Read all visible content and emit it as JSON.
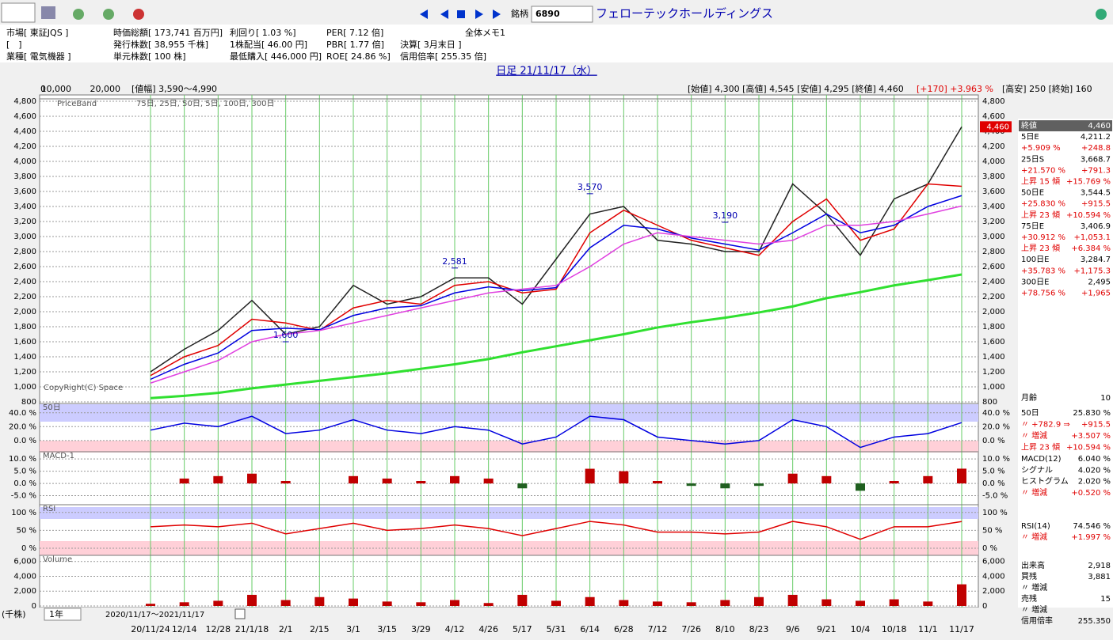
{
  "toolbar": {
    "code_label": "銘柄",
    "code": "6890",
    "company": "フェローテックホールディングス"
  },
  "info": [
    [
      "市場[ 東証JQS ]",
      "[　]",
      "業種[ 電気機器 ]"
    ],
    [
      "時価総額[ 173,741 百万円]",
      "発行株数[ 38,955 千株]",
      "単元株数[ 100 株]"
    ],
    [
      "利回り[ 1.03 %]",
      "1株配当[ 46.00 円]",
      "最低購入[ 446,000 円]"
    ],
    [
      "PER[ 7.12 倍]",
      "PBR[ 1.77 倍]",
      "ROE[ 24.86 %]"
    ],
    [
      "全体メモ1",
      "決算[ 3月末日 ]",
      "信用倍率[ 255.35 倍]"
    ]
  ],
  "chart_header": {
    "title": "日足 21/11/17（水）",
    "band_scale": [
      "0",
      "10,000",
      "20,000"
    ],
    "range": "[値幅] 3,590～4,990",
    "ohlc": "[始値] 4,300 [高値] 4,545 [安値] 4,295 [終値] 4,460",
    "change": "[+170] +3.963 %",
    "high_low": "[高安] 250 [終始] 160"
  },
  "chart_data": [
    {
      "type": "line",
      "title": "PriceBand",
      "subtitle": "75日, 25日, 50日, 5日, 100日, 300日",
      "footnote": "CopyRight(C) Space",
      "categories": [
        "20/11/24",
        "12/14",
        "12/28",
        "21/1/18",
        "2/1",
        "2/15",
        "3/1",
        "3/15",
        "3/29",
        "4/12",
        "4/26",
        "5/17",
        "5/31",
        "6/14",
        "6/28",
        "7/12",
        "7/26",
        "8/10",
        "8/23",
        "9/6",
        "9/21",
        "10/4",
        "10/18",
        "11/1",
        "11/17"
      ],
      "series": [
        {
          "color": "#222222",
          "values": [
            1200,
            1500,
            1750,
            2150,
            1700,
            1800,
            2350,
            2100,
            2200,
            2450,
            2450,
            2100,
            2700,
            3300,
            3400,
            2950,
            2900,
            2800,
            2800,
            3700,
            3300,
            2750,
            3500,
            3700,
            4460
          ]
        },
        {
          "color": "#e00000",
          "values": [
            1150,
            1400,
            1550,
            1900,
            1850,
            1750,
            2050,
            2150,
            2100,
            2350,
            2400,
            2250,
            2300,
            3050,
            3350,
            3150,
            2950,
            2850,
            2750,
            3200,
            3500,
            2950,
            3100,
            3700,
            3669
          ]
        },
        {
          "color": "#0000e0",
          "values": [
            1100,
            1300,
            1450,
            1750,
            1780,
            1760,
            1950,
            2050,
            2080,
            2250,
            2330,
            2280,
            2320,
            2850,
            3150,
            3100,
            2980,
            2900,
            2820,
            3050,
            3300,
            3050,
            3150,
            3400,
            3545
          ]
        },
        {
          "color": "#e040e0",
          "values": [
            1050,
            1200,
            1350,
            1600,
            1700,
            1750,
            1850,
            1950,
            2050,
            2150,
            2250,
            2300,
            2350,
            2600,
            2900,
            3050,
            3000,
            2950,
            2900,
            2950,
            3150,
            3150,
            3200,
            3300,
            3407
          ]
        },
        {
          "color": "#30e030",
          "values": [
            850,
            880,
            920,
            980,
            1030,
            1080,
            1130,
            1180,
            1240,
            1300,
            1370,
            1460,
            1540,
            1620,
            1700,
            1790,
            1860,
            1920,
            1990,
            2070,
            2180,
            2260,
            2350,
            2420,
            2495
          ]
        }
      ],
      "close_tag": "4,460",
      "annotations": [
        {
          "label": "1,600",
          "value": 1600,
          "category": "2/1"
        },
        {
          "label": "2,581",
          "value": 2581,
          "category": "4/12"
        },
        {
          "label": "3,570",
          "value": 3570,
          "category": "6/14"
        },
        {
          "label": "3,190",
          "value": 3190,
          "category": "8/10"
        }
      ],
      "ylim": [
        800,
        4800
      ],
      "yticks": [
        800,
        {
          "value": 1000,
          "label": "1,000"
        },
        {
          "value": 1200,
          "label": "1,200"
        },
        {
          "value": 1400,
          "label": "1,400"
        },
        {
          "value": 1600,
          "label": "1,600"
        },
        {
          "value": 1800,
          "label": "1,800"
        },
        {
          "value": 2000,
          "label": "2,000"
        },
        {
          "value": 2200,
          "label": "2,200"
        },
        {
          "value": 2400,
          "label": "2,400"
        },
        {
          "value": 2600,
          "label": "2,600"
        },
        {
          "value": 2800,
          "label": "2,800"
        },
        {
          "value": 3000,
          "label": "3,000"
        },
        {
          "value": 3200,
          "label": "3,200"
        },
        {
          "value": 3400,
          "label": "3,400"
        },
        {
          "value": 3600,
          "label": "3,600"
        },
        {
          "value": 3800,
          "label": "3,800"
        },
        {
          "value": 4000,
          "label": "4,000"
        },
        {
          "value": 4200,
          "label": "4,200"
        },
        {
          "value": 4400,
          "label": "4,400"
        },
        {
          "value": 4600,
          "label": "4,600"
        },
        {
          "value": 4800,
          "label": "4,800"
        }
      ],
      "grid": true
    },
    {
      "type": "line",
      "title": "50日",
      "series": [
        {
          "color": "#0000e0",
          "values": [
            15,
            25,
            20,
            35,
            10,
            15,
            30,
            15,
            10,
            20,
            15,
            -5,
            5,
            35,
            30,
            5,
            0,
            -5,
            0,
            30,
            20,
            -10,
            5,
            10,
            25.83
          ]
        }
      ],
      "ylim": [
        -15,
        50
      ],
      "yticks": [
        {
          "value": 0,
          "label": "0.0 %"
        },
        {
          "value": 20,
          "label": "20.0 %"
        },
        {
          "value": 40,
          "label": "40.0 %"
        }
      ],
      "grid": true
    },
    {
      "type": "bar",
      "title": "MACD-1",
      "series": [
        {
          "color": "#c00000",
          "negative_color": "#206020",
          "values": [
            0,
            2,
            3,
            4,
            1,
            0,
            3,
            2,
            1,
            3,
            2,
            -2,
            0,
            6,
            5,
            1,
            -1,
            -2,
            -1,
            4,
            3,
            -3,
            1,
            3,
            6.04
          ]
        }
      ],
      "ylim": [
        -10,
        12
      ],
      "yticks": [
        {
          "value": -5,
          "label": "-5.0 %"
        },
        {
          "value": 0,
          "label": "0.0 %"
        },
        {
          "value": 5,
          "label": "5.0 %"
        },
        {
          "value": 10,
          "label": "10.0 %"
        }
      ],
      "grid": true
    },
    {
      "type": "line",
      "title": "RSI",
      "series": [
        {
          "color": "#e00000",
          "values": [
            60,
            65,
            60,
            70,
            40,
            55,
            70,
            50,
            55,
            65,
            55,
            35,
            55,
            75,
            65,
            45,
            45,
            40,
            45,
            75,
            60,
            25,
            60,
            60,
            74.546
          ]
        }
      ],
      "ylim": [
        -20,
        115
      ],
      "yticks": [
        {
          "value": 0,
          "label": "0 %"
        },
        {
          "value": 50,
          "label": "50 %"
        },
        {
          "value": 100,
          "label": "100 %"
        }
      ],
      "grid": true
    },
    {
      "type": "bar",
      "title": "Volume",
      "unit": "(千株)",
      "series": [
        {
          "color": "#c00000",
          "negative_color": "#206020",
          "values": [
            300,
            500,
            700,
            1500,
            800,
            1200,
            1000,
            600,
            500,
            800,
            400,
            1500,
            700,
            1200,
            800,
            600,
            500,
            800,
            1200,
            1500,
            900,
            700,
            900,
            600,
            2918
          ]
        }
      ],
      "ylim": [
        0,
        6500
      ],
      "yticks": [
        0,
        {
          "value": 2000,
          "label": "2,000"
        },
        {
          "value": 4000,
          "label": "4,000"
        },
        {
          "value": 6000,
          "label": "6,000"
        }
      ],
      "grid": true
    }
  ],
  "footer": {
    "period": "1年",
    "range": "2020/11/17～2021/11/17"
  },
  "side_panel": [
    [
      {
        "label": "終値",
        "value": "4,460"
      },
      {
        "label": "5日E",
        "value": "4,211.2"
      },
      {
        "label": "+5.909 %",
        "value": "+248.8",
        "color": "#e00000"
      },
      {
        "label": "25日S",
        "value": "3,668.7"
      },
      {
        "label": "+21.570 %",
        "value": "+791.3",
        "color": "#e00000"
      },
      {
        "label": "上昇 15 傾",
        "value": "+15.769 %",
        "color": "#e00000"
      },
      {
        "label": "50日E",
        "value": "3,544.5"
      },
      {
        "label": "+25.830 %",
        "value": "+915.5",
        "color": "#e00000"
      },
      {
        "label": "上昇 23 傾",
        "value": "+10.594 %",
        "color": "#e00000"
      },
      {
        "label": "75日E",
        "value": "3,406.9"
      },
      {
        "label": "+30.912 %",
        "value": "+1,053.1",
        "color": "#e00000"
      },
      {
        "label": "上昇 23 傾",
        "value": "+6.384 %",
        "color": "#e00000"
      },
      {
        "label": "100日E",
        "value": "3,284.7"
      },
      {
        "label": "+35.783 %",
        "value": "+1,175.3",
        "color": "#e00000"
      },
      {
        "label": "300日E",
        "value": "2,495"
      },
      {
        "label": "+78.756 %",
        "value": "+1,965",
        "color": "#e00000"
      }
    ],
    [
      {
        "label": "月齢",
        "value": "10"
      }
    ],
    [
      {
        "label": "50日",
        "value": "25.830 %"
      },
      {
        "label": "〃 +782.9 ⇒",
        "value": "+915.5",
        "color": "#e00000"
      },
      {
        "label": "〃 増減",
        "value": "+3.507 %",
        "color": "#e00000"
      },
      {
        "label": "上昇 23 傾",
        "value": "+10.594 %",
        "color": "#e00000"
      }
    ],
    [
      {
        "label": "MACD(12)",
        "value": "6.040 %"
      },
      {
        "label": "シグナル",
        "value": "4.020 %"
      },
      {
        "label": "ヒストグラム",
        "value": "2.020 %"
      },
      {
        "label": "〃 増減",
        "value": "+0.520 %",
        "color": "#e00000"
      }
    ],
    [
      {
        "label": "RSI(14)",
        "value": "74.546 %"
      },
      {
        "label": "〃 増減",
        "value": "+1.997 %",
        "color": "#e00000"
      }
    ],
    [
      {
        "label": "出来高",
        "value": "2,918"
      },
      {
        "label": "買残",
        "value": "3,881"
      },
      {
        "label": "〃 増減"
      },
      {
        "label": "売残",
        "value": "15"
      },
      {
        "label": "〃 増減"
      },
      {
        "label": "信用倍率",
        "value": "255.350"
      }
    ]
  ]
}
